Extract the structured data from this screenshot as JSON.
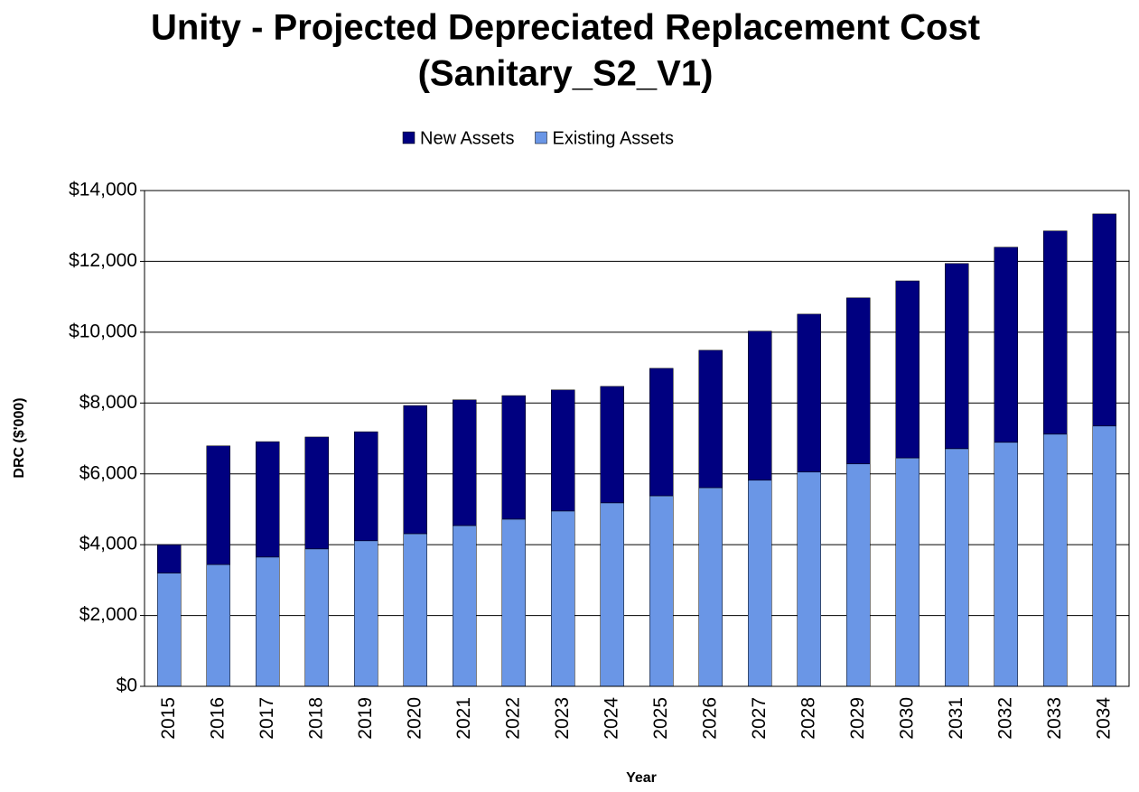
{
  "chart_data": {
    "type": "stacked_bar",
    "title": [
      "Unity - Projected Depreciated Replacement Cost",
      "(Sanitary_S2_V1)"
    ],
    "x_label": "Year",
    "y_label": "DRC ($'000)",
    "categories": [
      "2015",
      "2016",
      "2017",
      "2018",
      "2019",
      "2020",
      "2021",
      "2022",
      "2023",
      "2024",
      "2025",
      "2026",
      "2027",
      "2028",
      "2029",
      "2030",
      "2031",
      "2032",
      "2033",
      "2034"
    ],
    "series": [
      {
        "name": "New Assets",
        "color": "#000080",
        "values": [
          800,
          3350,
          3260,
          3160,
          3080,
          3620,
          3550,
          3490,
          3420,
          3290,
          3600,
          3880,
          4210,
          4460,
          4690,
          5000,
          5230,
          5510,
          5740,
          5990
        ]
      },
      {
        "name": "Existing Assets",
        "color": "#6a96e6",
        "values": [
          3200,
          3440,
          3650,
          3880,
          4110,
          4310,
          4540,
          4720,
          4950,
          5180,
          5380,
          5610,
          5820,
          6050,
          6280,
          6450,
          6710,
          6890,
          7120,
          7350
        ]
      }
    ],
    "ylim": [
      0,
      14000
    ],
    "yticks": [
      {
        "value": 0,
        "label": "$0"
      },
      {
        "value": 2000,
        "label": "$2,000"
      },
      {
        "value": 4000,
        "label": "$4,000"
      },
      {
        "value": 6000,
        "label": "$6,000"
      },
      {
        "value": 8000,
        "label": "$8,000"
      },
      {
        "value": 10000,
        "label": "$10,000"
      },
      {
        "value": 12000,
        "label": "$12,000"
      },
      {
        "value": 14000,
        "label": "$14,000"
      }
    ],
    "grid": true,
    "legend": "top"
  }
}
